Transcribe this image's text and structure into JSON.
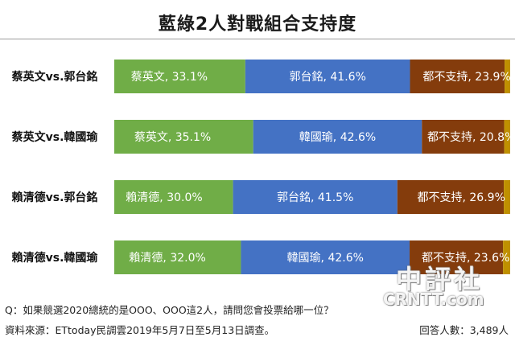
{
  "chart_data": {
    "type": "bar",
    "stacked": true,
    "orientation": "horizontal",
    "title": "藍綠2人對戰組合支持度",
    "categories": [
      "蔡英文vs.郭台銘",
      "蔡英文vs.韓國瑜",
      "賴清德vs.郭台銘",
      "賴清德vs.韓國瑜"
    ],
    "xlim": [
      0,
      100
    ],
    "grid": false,
    "rows": [
      {
        "category": "蔡英文vs.郭台銘",
        "segments": [
          {
            "label": "蔡英文, 33.1%",
            "value": 33.1,
            "color": "#70ad47"
          },
          {
            "label": "郭台銘, 41.6%",
            "value": 41.6,
            "color": "#4472c4"
          },
          {
            "label": "都不支持, 23.9%",
            "value": 23.9,
            "color": "#843c0c"
          },
          {
            "label": "",
            "value": 1.4,
            "color": "#bf9000"
          }
        ]
      },
      {
        "category": "蔡英文vs.韓國瑜",
        "segments": [
          {
            "label": "蔡英文, 35.1%",
            "value": 35.1,
            "color": "#70ad47"
          },
          {
            "label": "韓國瑜, 42.6%",
            "value": 42.6,
            "color": "#4472c4"
          },
          {
            "label": "都不支持, 20.8%",
            "value": 20.8,
            "color": "#843c0c"
          },
          {
            "label": "",
            "value": 1.5,
            "color": "#bf9000"
          }
        ]
      },
      {
        "category": "賴清德vs.郭台銘",
        "segments": [
          {
            "label": "賴清德, 30.0%",
            "value": 30.0,
            "color": "#70ad47"
          },
          {
            "label": "郭台銘, 41.5%",
            "value": 41.5,
            "color": "#4472c4"
          },
          {
            "label": "都不支持, 26.9%",
            "value": 26.9,
            "color": "#843c0c"
          },
          {
            "label": "",
            "value": 1.6,
            "color": "#bf9000"
          }
        ]
      },
      {
        "category": "賴清德vs.韓國瑜",
        "segments": [
          {
            "label": "賴清德, 32.0%",
            "value": 32.0,
            "color": "#70ad47"
          },
          {
            "label": "韓國瑜, 42.6%",
            "value": 42.6,
            "color": "#4472c4"
          },
          {
            "label": "都不支持, 23.6%",
            "value": 23.6,
            "color": "#843c0c"
          },
          {
            "label": "",
            "value": 1.8,
            "color": "#bf9000"
          }
        ]
      }
    ]
  },
  "footer": {
    "question": "Q：如果競選2020總統的是OOO、OOO這2人，請問您會投票給哪一位？",
    "source": "資料來源：ETtoday民調雲2019年5月7日至5月13日調查。",
    "sample": "回答人數：3,489人"
  },
  "watermark": {
    "chinese": "中評社",
    "english": "CRNTT.com"
  }
}
